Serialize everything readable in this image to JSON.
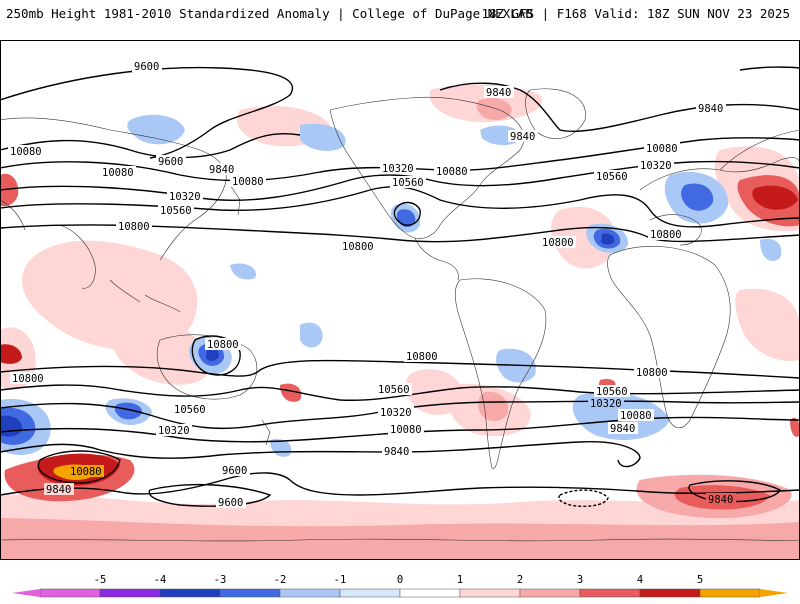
{
  "header": {
    "left": "250mb Height 1981-2010 Standardized Anomaly | College of DuPage NEXLAB",
    "right": "18Z GFS | F168 Valid: 18Z SUN NOV 23 2025"
  },
  "map": {
    "contour_labels": [
      "9600",
      "9840",
      "10080",
      "10320",
      "10560",
      "10800"
    ],
    "labels": [
      {
        "id": "l1",
        "text": "9600"
      },
      {
        "id": "l2",
        "text": "9840"
      },
      {
        "id": "l3",
        "text": "9840"
      },
      {
        "id": "l4",
        "text": "10080"
      },
      {
        "id": "l5",
        "text": "9600"
      },
      {
        "id": "l6",
        "text": "9840"
      },
      {
        "id": "l7",
        "text": "10080"
      },
      {
        "id": "l8",
        "text": "10320"
      },
      {
        "id": "l9",
        "text": "10560"
      },
      {
        "id": "l10",
        "text": "10800"
      },
      {
        "id": "l11",
        "text": "10320"
      },
      {
        "id": "l12",
        "text": "10560"
      },
      {
        "id": "l13",
        "text": "10080"
      },
      {
        "id": "l14",
        "text": "10800"
      },
      {
        "id": "l15",
        "text": "10560"
      },
      {
        "id": "l16",
        "text": "10800"
      },
      {
        "id": "l17",
        "text": "10080"
      },
      {
        "id": "l18",
        "text": "10320"
      },
      {
        "id": "l19",
        "text": "10800"
      },
      {
        "id": "l20",
        "text": "10800"
      },
      {
        "id": "l21",
        "text": "10800"
      },
      {
        "id": "l22",
        "text": "10800"
      },
      {
        "id": "l23",
        "text": "10800"
      },
      {
        "id": "l24",
        "text": "10560"
      },
      {
        "id": "l25",
        "text": "10560"
      },
      {
        "id": "l26",
        "text": "10320"
      },
      {
        "id": "l27",
        "text": "10320"
      },
      {
        "id": "l28",
        "text": "10080"
      },
      {
        "id": "l29",
        "text": "10080"
      },
      {
        "id": "l30",
        "text": "9840"
      },
      {
        "id": "l31",
        "text": "9840"
      },
      {
        "id": "l32",
        "text": "10080"
      },
      {
        "id": "l33",
        "text": "9840"
      },
      {
        "id": "l34",
        "text": "9600"
      },
      {
        "id": "l35",
        "text": "9600"
      },
      {
        "id": "l36",
        "text": "9840"
      },
      {
        "id": "l37",
        "text": "10560"
      },
      {
        "id": "l38",
        "text": "10320"
      },
      {
        "id": "l39",
        "text": "10080"
      },
      {
        "id": "l40",
        "text": "9840"
      }
    ]
  },
  "colorbar": {
    "ticks": [
      "-5",
      "-4",
      "-3",
      "-2",
      "-1",
      "0",
      "1",
      "2",
      "3",
      "4",
      "5"
    ],
    "colors": [
      "#e060e0",
      "#8a2be2",
      "#1f3fbf",
      "#4169e1",
      "#a9c8f5",
      "#d6e6fb",
      "#ffffff",
      "#ffd6d6",
      "#f7a8a8",
      "#e85c5c",
      "#c41a1a",
      "#f5a300"
    ]
  }
}
